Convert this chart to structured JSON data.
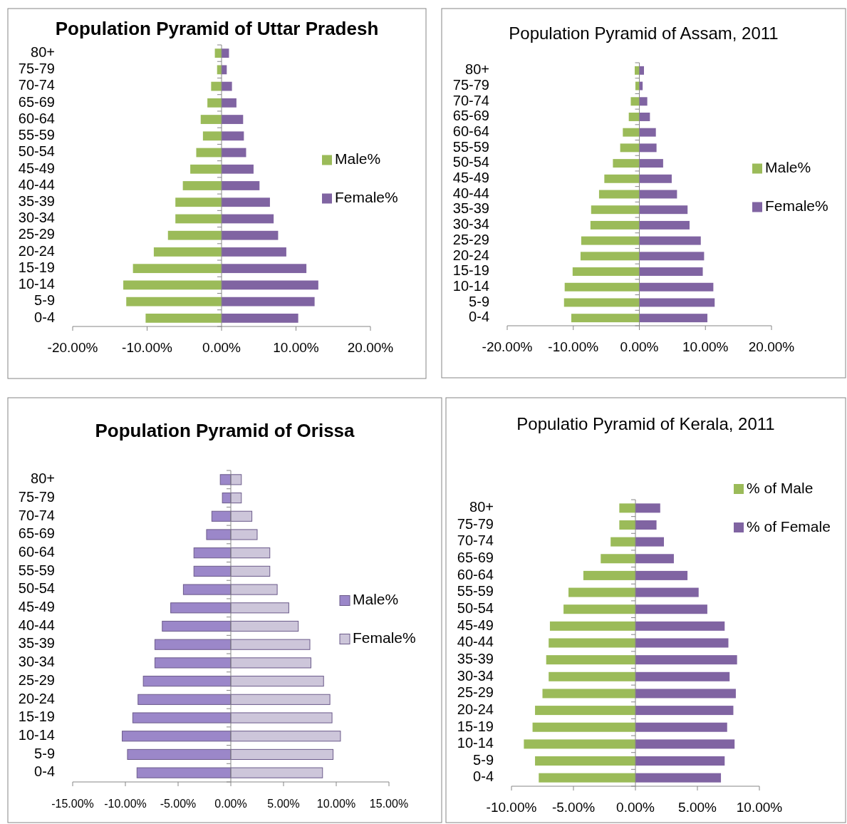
{
  "chart_data": [
    {
      "type": "bar",
      "orientation": "horizontal",
      "stacked": true,
      "title": "Population Pyramid  of Uttar Pradesh",
      "categories": [
        "80+",
        "75-79",
        "70-74",
        "65-69",
        "60-64",
        "55-59",
        "50-54",
        "45-49",
        "40-44",
        "35-39",
        "30-34",
        "25-29",
        "20-24",
        "15-19",
        "10-14",
        "5-9",
        "0-4"
      ],
      "series": [
        {
          "name": "Male%",
          "color": "#9bbb59",
          "values": [
            -0.9,
            -0.6,
            -1.4,
            -1.9,
            -2.8,
            -2.5,
            -3.4,
            -4.2,
            -5.2,
            -6.2,
            -6.2,
            -7.2,
            -9.1,
            -11.9,
            -13.2,
            -12.8,
            -10.2
          ]
        },
        {
          "name": "Female%",
          "color": "#8064a2",
          "values": [
            1.0,
            0.7,
            1.4,
            2.0,
            2.9,
            3.0,
            3.3,
            4.3,
            5.1,
            6.5,
            7.0,
            7.6,
            8.7,
            11.4,
            13.0,
            12.5,
            10.3
          ]
        }
      ],
      "xlim": [
        -20,
        20
      ],
      "xticks": [
        {
          "value": -20,
          "label": "-20.00%"
        },
        {
          "value": -10,
          "label": "-10.00%"
        },
        {
          "value": 0,
          "label": "0.00%"
        },
        {
          "value": 10,
          "label": "10.00%"
        },
        {
          "value": 20,
          "label": "20.00%"
        }
      ],
      "legend": "right"
    },
    {
      "type": "bar",
      "orientation": "horizontal",
      "stacked": true,
      "title": "Population Pyramid of Assam, 2011",
      "categories": [
        "80+",
        "75-79",
        "70-74",
        "65-69",
        "60-64",
        "55-59",
        "50-54",
        "45-49",
        "40-44",
        "35-39",
        "30-34",
        "25-29",
        "20-24",
        "15-19",
        "10-14",
        "5-9",
        "0-4"
      ],
      "series": [
        {
          "name": "Male%",
          "color": "#9bbb59",
          "values": [
            -0.7,
            -0.6,
            -1.3,
            -1.6,
            -2.5,
            -2.9,
            -4.0,
            -5.3,
            -6.1,
            -7.3,
            -7.4,
            -8.8,
            -8.9,
            -10.1,
            -11.3,
            -11.4,
            -10.3
          ]
        },
        {
          "name": "Female%",
          "color": "#8064a2",
          "values": [
            0.7,
            0.5,
            1.2,
            1.6,
            2.5,
            2.6,
            3.6,
            4.9,
            5.7,
            7.3,
            7.6,
            9.3,
            9.8,
            9.6,
            11.2,
            11.4,
            10.3
          ]
        }
      ],
      "xlim": [
        -20,
        20
      ],
      "xticks": [
        {
          "value": -20,
          "label": "-20.00%"
        },
        {
          "value": -10,
          "label": "-10.00%"
        },
        {
          "value": 0,
          "label": "0.00%"
        },
        {
          "value": 10,
          "label": "10.00%"
        },
        {
          "value": 20,
          "label": "20.00%"
        }
      ],
      "legend": "right"
    },
    {
      "type": "bar",
      "orientation": "horizontal",
      "stacked": true,
      "title": "Population Pyramid of Orissa",
      "categories": [
        "80+",
        "75-79",
        "70-74",
        "65-69",
        "60-64",
        "55-59",
        "50-54",
        "45-49",
        "40-44",
        "35-39",
        "30-34",
        "25-29",
        "20-24",
        "15-19",
        "10-14",
        "5-9",
        "0-4"
      ],
      "series": [
        {
          "name": "Male%",
          "color": "#9b87c9",
          "values": [
            -1.0,
            -0.8,
            -1.8,
            -2.3,
            -3.5,
            -3.5,
            -4.5,
            -5.7,
            -6.5,
            -7.2,
            -7.2,
            -8.3,
            -8.8,
            -9.3,
            -10.3,
            -9.8,
            -8.9
          ]
        },
        {
          "name": "Female%",
          "color": "#cdc6da",
          "values": [
            1.0,
            1.0,
            2.0,
            2.5,
            3.7,
            3.7,
            4.4,
            5.5,
            6.4,
            7.5,
            7.6,
            8.8,
            9.4,
            9.6,
            10.4,
            9.7,
            8.7
          ]
        }
      ],
      "xlim": [
        -15,
        15
      ],
      "xticks": [
        {
          "value": -15,
          "label": "-15.00%"
        },
        {
          "value": -10,
          "label": "-10.00%"
        },
        {
          "value": -5,
          "label": "-5.00%"
        },
        {
          "value": 0,
          "label": "0.00%"
        },
        {
          "value": 5,
          "label": "5.00%"
        },
        {
          "value": 10,
          "label": "10.00%"
        },
        {
          "value": 15,
          "label": "15.00%"
        }
      ],
      "legend": "right"
    },
    {
      "type": "bar",
      "orientation": "horizontal",
      "stacked": true,
      "title": "Populatio Pyramid of Kerala, 2011",
      "categories": [
        "80+",
        "75-79",
        "70-74",
        "65-69",
        "60-64",
        "55-59",
        "50-54",
        "45-49",
        "40-44",
        "35-39",
        "30-34",
        "25-29",
        "20-24",
        "15-19",
        "10-14",
        "5-9",
        "0-4"
      ],
      "series": [
        {
          "name": "% of Male",
          "color": "#9bbb59",
          "values": [
            -1.3,
            -1.3,
            -2.0,
            -2.8,
            -4.2,
            -5.4,
            -5.8,
            -6.9,
            -7.0,
            -7.2,
            -7.0,
            -7.5,
            -8.1,
            -8.3,
            -9.0,
            -8.1,
            -7.8
          ]
        },
        {
          "name": "% of Female",
          "color": "#8064a2",
          "values": [
            2.0,
            1.7,
            2.3,
            3.1,
            4.2,
            5.1,
            5.8,
            7.2,
            7.5,
            8.2,
            7.6,
            8.1,
            7.9,
            7.4,
            8.0,
            7.2,
            6.9
          ]
        }
      ],
      "xlim": [
        -10,
        10
      ],
      "xticks": [
        {
          "value": -10,
          "label": "-10.00%"
        },
        {
          "value": -5,
          "label": "-5.00%"
        },
        {
          "value": 0,
          "label": "0.00%"
        },
        {
          "value": 5,
          "label": "5.00%"
        },
        {
          "value": 10,
          "label": "10.00%"
        }
      ],
      "legend": "top right"
    }
  ]
}
